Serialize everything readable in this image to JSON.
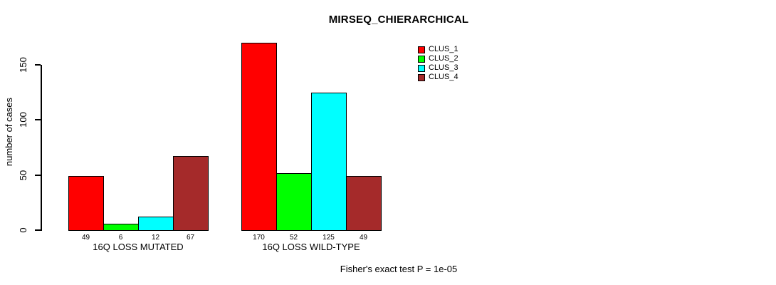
{
  "chart_data": {
    "type": "bar",
    "title": "MIRSEQ_CHIERARCHICAL",
    "ylabel": "number of cases",
    "xlabel": "",
    "categories": [
      "16Q LOSS MUTATED",
      "16Q LOSS WILD-TYPE"
    ],
    "series": [
      {
        "name": "CLUS_1",
        "color": "#ff0000",
        "values": [
          49,
          170
        ]
      },
      {
        "name": "CLUS_2",
        "color": "#00ff00",
        "values": [
          6,
          52
        ]
      },
      {
        "name": "CLUS_3",
        "color": "#00ffff",
        "values": [
          12,
          125
        ]
      },
      {
        "name": "CLUS_4",
        "color": "#a52a2a",
        "values": [
          67,
          49
        ]
      }
    ],
    "yticks": [
      0,
      50,
      100,
      150
    ],
    "ylim": [
      0,
      178
    ],
    "grid": false,
    "legend_position": "top-right",
    "bar_value_labels_shown": true,
    "annotation": "Fisher's exact test P = 1e-05"
  },
  "colors": {
    "background": "#ffffff",
    "axis": "#000000",
    "text": "#000000",
    "bar_border": "#000000"
  }
}
